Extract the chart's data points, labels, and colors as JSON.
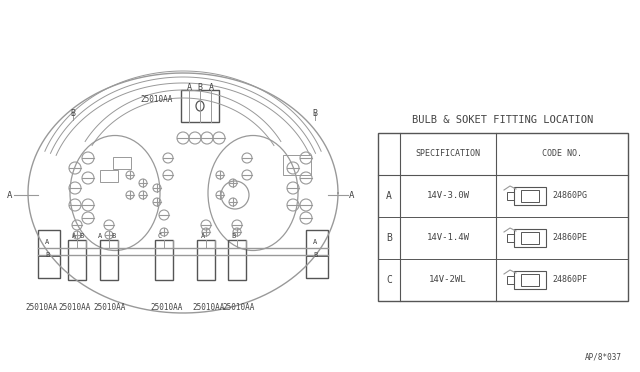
{
  "bg_color": "#ffffff",
  "line_color": "#999999",
  "dark_color": "#555555",
  "text_color": "#444444",
  "title": "BULB & SOKET FITTING LOCATION",
  "rows": [
    {
      "label": "A",
      "spec": "14V-3.0W",
      "code": "24860PG"
    },
    {
      "label": "B",
      "spec": "14V-1.4W",
      "code": "24860PE"
    },
    {
      "label": "C",
      "spec": "14V-2WL",
      "code": "24860PF"
    }
  ],
  "footer_text": "AP/8*037"
}
